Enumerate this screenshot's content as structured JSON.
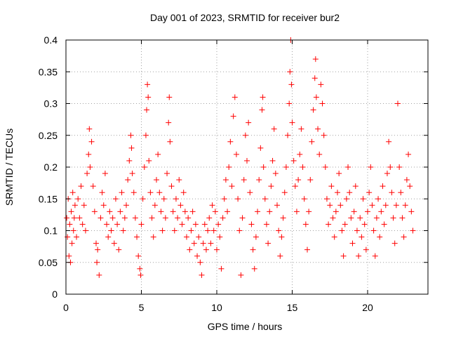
{
  "chart_data": {
    "type": "scatter",
    "title": "Day 001 of 2023, SRMTID for receiver bur2",
    "xlabel": "GPS time / hours",
    "ylabel": "SRMTID / TECUs",
    "xlim": [
      0,
      24
    ],
    "ylim": [
      0,
      0.4
    ],
    "grid": true,
    "marker": "+",
    "color": "#ff0000",
    "x_ticks": [
      {
        "value": 0,
        "label": "0"
      },
      {
        "value": 5,
        "label": "5"
      },
      {
        "value": 10,
        "label": "10"
      },
      {
        "value": 15,
        "label": "15"
      },
      {
        "value": 20,
        "label": "20"
      }
    ],
    "y_ticks": [
      {
        "value": 0,
        "label": "0"
      },
      {
        "value": 0.05,
        "label": "0.05"
      },
      {
        "value": 0.1,
        "label": "0.1"
      },
      {
        "value": 0.15,
        "label": "0.15"
      },
      {
        "value": 0.2,
        "label": "0.2"
      },
      {
        "value": 0.25,
        "label": "0.25"
      },
      {
        "value": 0.3,
        "label": "0.3"
      },
      {
        "value": 0.35,
        "label": "0.35"
      },
      {
        "value": 0.4,
        "label": "0.4"
      }
    ],
    "series": [
      {
        "name": "SRMTID",
        "points": [
          [
            0.05,
            0.12
          ],
          [
            0.1,
            0.09
          ],
          [
            0.15,
            0.15
          ],
          [
            0.2,
            0.06
          ],
          [
            0.25,
            0.11
          ],
          [
            0.3,
            0.05
          ],
          [
            0.35,
            0.13
          ],
          [
            0.4,
            0.08
          ],
          [
            0.45,
            0.16
          ],
          [
            0.5,
            0.1
          ],
          [
            0.55,
            0.12
          ],
          [
            0.6,
            0.14
          ],
          [
            0.7,
            0.09
          ],
          [
            0.8,
            0.15
          ],
          [
            0.9,
            0.12
          ],
          [
            1.0,
            0.17
          ],
          [
            1.1,
            0.11
          ],
          [
            1.2,
            0.14
          ],
          [
            1.3,
            0.1
          ],
          [
            1.4,
            0.19
          ],
          [
            1.5,
            0.22
          ],
          [
            1.55,
            0.26
          ],
          [
            1.6,
            0.2
          ],
          [
            1.7,
            0.24
          ],
          [
            1.8,
            0.17
          ],
          [
            1.9,
            0.13
          ],
          [
            2.0,
            0.08
          ],
          [
            2.05,
            0.05
          ],
          [
            2.1,
            0.07
          ],
          [
            2.2,
            0.03
          ],
          [
            2.3,
            0.12
          ],
          [
            2.4,
            0.16
          ],
          [
            2.5,
            0.14
          ],
          [
            2.6,
            0.19
          ],
          [
            2.7,
            0.11
          ],
          [
            2.8,
            0.09
          ],
          [
            2.9,
            0.13
          ],
          [
            3.0,
            0.1
          ],
          [
            3.1,
            0.12
          ],
          [
            3.2,
            0.08
          ],
          [
            3.3,
            0.15
          ],
          [
            3.4,
            0.11
          ],
          [
            3.5,
            0.07
          ],
          [
            3.6,
            0.13
          ],
          [
            3.7,
            0.16
          ],
          [
            3.8,
            0.1
          ],
          [
            3.9,
            0.12
          ],
          [
            4.0,
            0.14
          ],
          [
            4.1,
            0.18
          ],
          [
            4.2,
            0.21
          ],
          [
            4.3,
            0.25
          ],
          [
            4.35,
            0.23
          ],
          [
            4.4,
            0.19
          ],
          [
            4.5,
            0.16
          ],
          [
            4.6,
            0.12
          ],
          [
            4.7,
            0.09
          ],
          [
            4.8,
            0.06
          ],
          [
            4.9,
            0.04
          ],
          [
            4.95,
            0.03
          ],
          [
            5.0,
            0.11
          ],
          [
            5.1,
            0.15
          ],
          [
            5.2,
            0.2
          ],
          [
            5.3,
            0.25
          ],
          [
            5.35,
            0.29
          ],
          [
            5.4,
            0.33
          ],
          [
            5.45,
            0.31
          ],
          [
            5.5,
            0.21
          ],
          [
            5.6,
            0.16
          ],
          [
            5.7,
            0.12
          ],
          [
            5.8,
            0.09
          ],
          [
            5.9,
            0.14
          ],
          [
            6.0,
            0.18
          ],
          [
            6.1,
            0.22
          ],
          [
            6.2,
            0.16
          ],
          [
            6.3,
            0.13
          ],
          [
            6.4,
            0.1
          ],
          [
            6.5,
            0.15
          ],
          [
            6.6,
            0.12
          ],
          [
            6.7,
            0.19
          ],
          [
            6.8,
            0.27
          ],
          [
            6.85,
            0.31
          ],
          [
            6.9,
            0.24
          ],
          [
            7.0,
            0.17
          ],
          [
            7.1,
            0.13
          ],
          [
            7.2,
            0.1
          ],
          [
            7.3,
            0.15
          ],
          [
            7.4,
            0.12
          ],
          [
            7.5,
            0.18
          ],
          [
            7.6,
            0.14
          ],
          [
            7.7,
            0.11
          ],
          [
            7.8,
            0.16
          ],
          [
            7.9,
            0.13
          ],
          [
            8.0,
            0.09
          ],
          [
            8.1,
            0.12
          ],
          [
            8.2,
            0.07
          ],
          [
            8.3,
            0.1
          ],
          [
            8.4,
            0.13
          ],
          [
            8.5,
            0.08
          ],
          [
            8.6,
            0.11
          ],
          [
            8.7,
            0.06
          ],
          [
            8.8,
            0.09
          ],
          [
            8.9,
            0.05
          ],
          [
            9.0,
            0.03
          ],
          [
            9.1,
            0.08
          ],
          [
            9.2,
            0.11
          ],
          [
            9.3,
            0.07
          ],
          [
            9.4,
            0.1
          ],
          [
            9.5,
            0.12
          ],
          [
            9.6,
            0.08
          ],
          [
            9.7,
            0.14
          ],
          [
            9.8,
            0.1
          ],
          [
            9.9,
            0.13
          ],
          [
            10.0,
            0.07
          ],
          [
            10.1,
            0.11
          ],
          [
            10.2,
            0.09
          ],
          [
            10.3,
            0.04
          ],
          [
            10.4,
            0.12
          ],
          [
            10.5,
            0.15
          ],
          [
            10.6,
            0.18
          ],
          [
            10.7,
            0.13
          ],
          [
            10.8,
            0.2
          ],
          [
            10.9,
            0.24
          ],
          [
            11.0,
            0.17
          ],
          [
            11.1,
            0.28
          ],
          [
            11.2,
            0.31
          ],
          [
            11.3,
            0.22
          ],
          [
            11.4,
            0.15
          ],
          [
            11.5,
            0.1
          ],
          [
            11.6,
            0.03
          ],
          [
            11.7,
            0.12
          ],
          [
            11.8,
            0.18
          ],
          [
            11.9,
            0.25
          ],
          [
            12.0,
            0.21
          ],
          [
            12.1,
            0.27
          ],
          [
            12.2,
            0.16
          ],
          [
            12.3,
            0.11
          ],
          [
            12.4,
            0.07
          ],
          [
            12.5,
            0.04
          ],
          [
            12.6,
            0.09
          ],
          [
            12.7,
            0.13
          ],
          [
            12.8,
            0.18
          ],
          [
            12.9,
            0.23
          ],
          [
            13.0,
            0.29
          ],
          [
            13.05,
            0.31
          ],
          [
            13.1,
            0.2
          ],
          [
            13.2,
            0.15
          ],
          [
            13.3,
            0.11
          ],
          [
            13.4,
            0.08
          ],
          [
            13.5,
            0.13
          ],
          [
            13.6,
            0.17
          ],
          [
            13.7,
            0.21
          ],
          [
            13.8,
            0.26
          ],
          [
            13.9,
            0.19
          ],
          [
            14.0,
            0.14
          ],
          [
            14.1,
            0.1
          ],
          [
            14.2,
            0.06
          ],
          [
            14.3,
            0.09
          ],
          [
            14.4,
            0.12
          ],
          [
            14.5,
            0.16
          ],
          [
            14.6,
            0.2
          ],
          [
            14.7,
            0.25
          ],
          [
            14.8,
            0.3
          ],
          [
            14.85,
            0.35
          ],
          [
            14.9,
            0.4
          ],
          [
            14.95,
            0.33
          ],
          [
            15.0,
            0.27
          ],
          [
            15.1,
            0.21
          ],
          [
            15.2,
            0.17
          ],
          [
            15.3,
            0.13
          ],
          [
            15.4,
            0.18
          ],
          [
            15.5,
            0.22
          ],
          [
            15.6,
            0.26
          ],
          [
            15.7,
            0.2
          ],
          [
            15.8,
            0.15
          ],
          [
            15.9,
            0.11
          ],
          [
            16.0,
            0.07
          ],
          [
            16.1,
            0.13
          ],
          [
            16.2,
            0.18
          ],
          [
            16.3,
            0.24
          ],
          [
            16.4,
            0.29
          ],
          [
            16.5,
            0.34
          ],
          [
            16.55,
            0.37
          ],
          [
            16.6,
            0.31
          ],
          [
            16.7,
            0.26
          ],
          [
            16.8,
            0.22
          ],
          [
            16.9,
            0.33
          ],
          [
            17.0,
            0.3
          ],
          [
            17.1,
            0.25
          ],
          [
            17.2,
            0.2
          ],
          [
            17.3,
            0.15
          ],
          [
            17.4,
            0.11
          ],
          [
            17.5,
            0.14
          ],
          [
            17.6,
            0.17
          ],
          [
            17.7,
            0.12
          ],
          [
            17.8,
            0.09
          ],
          [
            17.9,
            0.13
          ],
          [
            18.0,
            0.16
          ],
          [
            18.1,
            0.19
          ],
          [
            18.2,
            0.14
          ],
          [
            18.3,
            0.1
          ],
          [
            18.4,
            0.06
          ],
          [
            18.5,
            0.11
          ],
          [
            18.6,
            0.15
          ],
          [
            18.7,
            0.2
          ],
          [
            18.8,
            0.16
          ],
          [
            18.9,
            0.12
          ],
          [
            19.0,
            0.08
          ],
          [
            19.1,
            0.13
          ],
          [
            19.2,
            0.17
          ],
          [
            19.3,
            0.1
          ],
          [
            19.4,
            0.06
          ],
          [
            19.5,
            0.12
          ],
          [
            19.6,
            0.09
          ],
          [
            19.7,
            0.15
          ],
          [
            19.8,
            0.11
          ],
          [
            19.9,
            0.07
          ],
          [
            20.0,
            0.13
          ],
          [
            20.1,
            0.16
          ],
          [
            20.2,
            0.2
          ],
          [
            20.3,
            0.14
          ],
          [
            20.4,
            0.1
          ],
          [
            20.5,
            0.06
          ],
          [
            20.6,
            0.12
          ],
          [
            20.7,
            0.15
          ],
          [
            20.8,
            0.09
          ],
          [
            20.9,
            0.13
          ],
          [
            21.0,
            0.17
          ],
          [
            21.1,
            0.11
          ],
          [
            21.2,
            0.14
          ],
          [
            21.3,
            0.19
          ],
          [
            21.4,
            0.24
          ],
          [
            21.5,
            0.2
          ],
          [
            21.6,
            0.16
          ],
          [
            21.7,
            0.12
          ],
          [
            21.8,
            0.08
          ],
          [
            21.9,
            0.14
          ],
          [
            22.0,
            0.3
          ],
          [
            22.1,
            0.2
          ],
          [
            22.2,
            0.16
          ],
          [
            22.3,
            0.12
          ],
          [
            22.4,
            0.09
          ],
          [
            22.5,
            0.14
          ],
          [
            22.6,
            0.18
          ],
          [
            22.7,
            0.22
          ],
          [
            22.8,
            0.17
          ],
          [
            22.9,
            0.13
          ],
          [
            23.0,
            0.1
          ]
        ]
      }
    ]
  }
}
